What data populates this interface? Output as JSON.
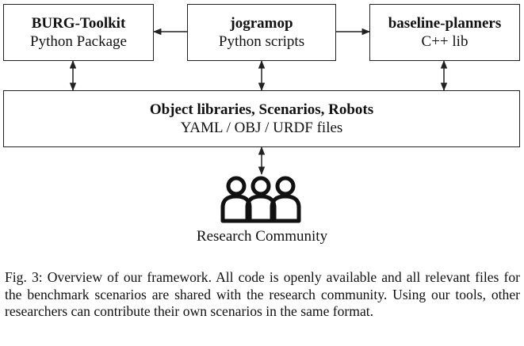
{
  "boxes": {
    "burg": {
      "title": "BURG-Toolkit",
      "sub": "Python Package"
    },
    "jogramop": {
      "title": "jogramop",
      "sub": "Python scripts"
    },
    "baseline": {
      "title": "baseline-planners",
      "sub": "C++ lib"
    },
    "libraries": {
      "title": "Object libraries, Scenarios, Robots",
      "sub": "YAML / OBJ / URDF files"
    }
  },
  "community": {
    "label": "Research Community",
    "icon": "people-group-icon"
  },
  "caption": "Fig. 3: Overview of our framework. All code is openly available and all relevant files for the benchmark scenarios are shared with the research community. Using our tools, other researchers can contribute their own scenarios in the same format."
}
